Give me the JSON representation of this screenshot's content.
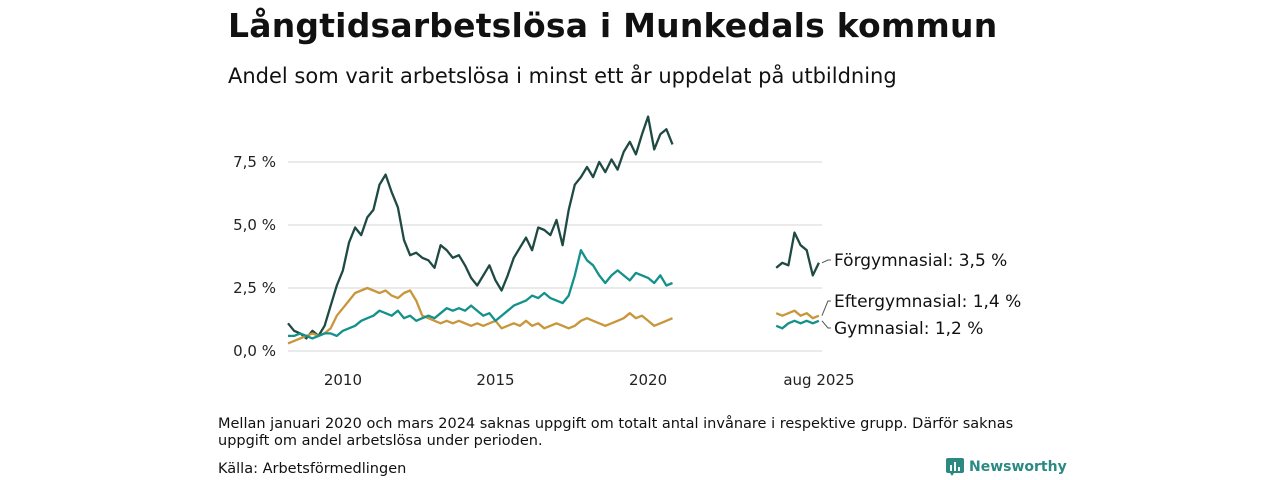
{
  "header": {
    "title": "Långtidsarbetslösa i Munkedals kommun",
    "subtitle": "Andel som varit arbetslösa i minst ett år uppdelat på utbildning"
  },
  "footer": {
    "note": "Mellan januari 2020 och mars 2024 saknas uppgift om totalt antal invånare i respektive grupp. Därför saknas uppgift om andel arbetslösa under perioden.",
    "source": "Källa: Arbetsförmedlingen",
    "logo_text": "Newsworthy"
  },
  "chart_data": {
    "type": "line",
    "x_axis": {
      "range": [
        2008.2,
        2025.7
      ],
      "ticks": [
        2010,
        2015,
        2020
      ],
      "extra_tick": {
        "x": 2025.6,
        "label": "aug 2025"
      }
    },
    "y_axis": {
      "range": [
        0,
        9.6
      ],
      "ticks": [
        {
          "value": 0,
          "label": "0,0 %"
        },
        {
          "value": 2.5,
          "label": "2,5 %"
        },
        {
          "value": 5,
          "label": "5,0 %"
        },
        {
          "value": 7.5,
          "label": "7,5 %"
        }
      ]
    },
    "grid": true,
    "gap": [
      2020.9,
      2024.2
    ],
    "series": [
      {
        "name": "Förgymnasial",
        "color": "#1f4a43",
        "end_label": "Förgymnasial: 3,5 %",
        "points": [
          [
            2008.2,
            1.1
          ],
          [
            2008.4,
            0.8
          ],
          [
            2008.6,
            0.7
          ],
          [
            2008.8,
            0.5
          ],
          [
            2009.0,
            0.8
          ],
          [
            2009.2,
            0.6
          ],
          [
            2009.4,
            1.0
          ],
          [
            2009.6,
            1.8
          ],
          [
            2009.8,
            2.6
          ],
          [
            2010.0,
            3.2
          ],
          [
            2010.2,
            4.3
          ],
          [
            2010.4,
            4.9
          ],
          [
            2010.6,
            4.6
          ],
          [
            2010.8,
            5.3
          ],
          [
            2011.0,
            5.6
          ],
          [
            2011.2,
            6.6
          ],
          [
            2011.4,
            7.0
          ],
          [
            2011.6,
            6.3
          ],
          [
            2011.8,
            5.7
          ],
          [
            2012.0,
            4.4
          ],
          [
            2012.2,
            3.8
          ],
          [
            2012.4,
            3.9
          ],
          [
            2012.6,
            3.7
          ],
          [
            2012.8,
            3.6
          ],
          [
            2013.0,
            3.3
          ],
          [
            2013.2,
            4.2
          ],
          [
            2013.4,
            4.0
          ],
          [
            2013.6,
            3.7
          ],
          [
            2013.8,
            3.8
          ],
          [
            2014.0,
            3.4
          ],
          [
            2014.2,
            2.9
          ],
          [
            2014.4,
            2.6
          ],
          [
            2014.6,
            3.0
          ],
          [
            2014.8,
            3.4
          ],
          [
            2015.0,
            2.8
          ],
          [
            2015.2,
            2.4
          ],
          [
            2015.4,
            3.0
          ],
          [
            2015.6,
            3.7
          ],
          [
            2015.8,
            4.1
          ],
          [
            2016.0,
            4.5
          ],
          [
            2016.2,
            4.0
          ],
          [
            2016.4,
            4.9
          ],
          [
            2016.6,
            4.8
          ],
          [
            2016.8,
            4.6
          ],
          [
            2017.0,
            5.2
          ],
          [
            2017.2,
            4.2
          ],
          [
            2017.4,
            5.6
          ],
          [
            2017.6,
            6.6
          ],
          [
            2017.8,
            6.9
          ],
          [
            2018.0,
            7.3
          ],
          [
            2018.2,
            6.9
          ],
          [
            2018.4,
            7.5
          ],
          [
            2018.6,
            7.1
          ],
          [
            2018.8,
            7.6
          ],
          [
            2019.0,
            7.2
          ],
          [
            2019.2,
            7.9
          ],
          [
            2019.4,
            8.3
          ],
          [
            2019.6,
            7.8
          ],
          [
            2019.8,
            8.6
          ],
          [
            2020.0,
            9.3
          ],
          [
            2020.2,
            8.0
          ],
          [
            2020.4,
            8.6
          ],
          [
            2020.6,
            8.8
          ],
          [
            2020.8,
            8.2
          ]
        ],
        "points2": [
          [
            2024.2,
            3.3
          ],
          [
            2024.4,
            3.5
          ],
          [
            2024.6,
            3.4
          ],
          [
            2024.8,
            4.7
          ],
          [
            2025.0,
            4.2
          ],
          [
            2025.2,
            4.0
          ],
          [
            2025.4,
            3.0
          ],
          [
            2025.6,
            3.5
          ]
        ]
      },
      {
        "name": "Eftergymnasial",
        "color": "#c9963b",
        "end_label": "Eftergymnasial: 1,4 %",
        "points": [
          [
            2008.2,
            0.3
          ],
          [
            2008.4,
            0.4
          ],
          [
            2008.6,
            0.5
          ],
          [
            2008.8,
            0.6
          ],
          [
            2009.0,
            0.7
          ],
          [
            2009.2,
            0.6
          ],
          [
            2009.4,
            0.7
          ],
          [
            2009.6,
            0.9
          ],
          [
            2009.8,
            1.4
          ],
          [
            2010.0,
            1.7
          ],
          [
            2010.2,
            2.0
          ],
          [
            2010.4,
            2.3
          ],
          [
            2010.6,
            2.4
          ],
          [
            2010.8,
            2.5
          ],
          [
            2011.0,
            2.4
          ],
          [
            2011.2,
            2.3
          ],
          [
            2011.4,
            2.4
          ],
          [
            2011.6,
            2.2
          ],
          [
            2011.8,
            2.1
          ],
          [
            2012.0,
            2.3
          ],
          [
            2012.2,
            2.4
          ],
          [
            2012.4,
            2.0
          ],
          [
            2012.6,
            1.4
          ],
          [
            2012.8,
            1.3
          ],
          [
            2013.0,
            1.2
          ],
          [
            2013.2,
            1.1
          ],
          [
            2013.4,
            1.2
          ],
          [
            2013.6,
            1.1
          ],
          [
            2013.8,
            1.2
          ],
          [
            2014.0,
            1.1
          ],
          [
            2014.2,
            1.0
          ],
          [
            2014.4,
            1.1
          ],
          [
            2014.6,
            1.0
          ],
          [
            2014.8,
            1.1
          ],
          [
            2015.0,
            1.2
          ],
          [
            2015.2,
            0.9
          ],
          [
            2015.4,
            1.0
          ],
          [
            2015.6,
            1.1
          ],
          [
            2015.8,
            1.0
          ],
          [
            2016.0,
            1.2
          ],
          [
            2016.2,
            1.0
          ],
          [
            2016.4,
            1.1
          ],
          [
            2016.6,
            0.9
          ],
          [
            2016.8,
            1.0
          ],
          [
            2017.0,
            1.1
          ],
          [
            2017.2,
            1.0
          ],
          [
            2017.4,
            0.9
          ],
          [
            2017.6,
            1.0
          ],
          [
            2017.8,
            1.2
          ],
          [
            2018.0,
            1.3
          ],
          [
            2018.2,
            1.2
          ],
          [
            2018.4,
            1.1
          ],
          [
            2018.6,
            1.0
          ],
          [
            2018.8,
            1.1
          ],
          [
            2019.0,
            1.2
          ],
          [
            2019.2,
            1.3
          ],
          [
            2019.4,
            1.5
          ],
          [
            2019.6,
            1.3
          ],
          [
            2019.8,
            1.4
          ],
          [
            2020.0,
            1.2
          ],
          [
            2020.2,
            1.0
          ],
          [
            2020.4,
            1.1
          ],
          [
            2020.6,
            1.2
          ],
          [
            2020.8,
            1.3
          ]
        ],
        "points2": [
          [
            2024.2,
            1.5
          ],
          [
            2024.4,
            1.4
          ],
          [
            2024.6,
            1.5
          ],
          [
            2024.8,
            1.6
          ],
          [
            2025.0,
            1.4
          ],
          [
            2025.2,
            1.5
          ],
          [
            2025.4,
            1.3
          ],
          [
            2025.6,
            1.4
          ]
        ]
      },
      {
        "name": "Gymnasial",
        "color": "#13918a",
        "end_label": "Gymnasial: 1,2 %",
        "points": [
          [
            2008.2,
            0.6
          ],
          [
            2008.4,
            0.6
          ],
          [
            2008.6,
            0.7
          ],
          [
            2008.8,
            0.6
          ],
          [
            2009.0,
            0.5
          ],
          [
            2009.2,
            0.6
          ],
          [
            2009.4,
            0.7
          ],
          [
            2009.6,
            0.7
          ],
          [
            2009.8,
            0.6
          ],
          [
            2010.0,
            0.8
          ],
          [
            2010.2,
            0.9
          ],
          [
            2010.4,
            1.0
          ],
          [
            2010.6,
            1.2
          ],
          [
            2010.8,
            1.3
          ],
          [
            2011.0,
            1.4
          ],
          [
            2011.2,
            1.6
          ],
          [
            2011.4,
            1.5
          ],
          [
            2011.6,
            1.4
          ],
          [
            2011.8,
            1.6
          ],
          [
            2012.0,
            1.3
          ],
          [
            2012.2,
            1.4
          ],
          [
            2012.4,
            1.2
          ],
          [
            2012.6,
            1.3
          ],
          [
            2012.8,
            1.4
          ],
          [
            2013.0,
            1.3
          ],
          [
            2013.2,
            1.5
          ],
          [
            2013.4,
            1.7
          ],
          [
            2013.6,
            1.6
          ],
          [
            2013.8,
            1.7
          ],
          [
            2014.0,
            1.6
          ],
          [
            2014.2,
            1.8
          ],
          [
            2014.4,
            1.6
          ],
          [
            2014.6,
            1.4
          ],
          [
            2014.8,
            1.5
          ],
          [
            2015.0,
            1.2
          ],
          [
            2015.2,
            1.4
          ],
          [
            2015.4,
            1.6
          ],
          [
            2015.6,
            1.8
          ],
          [
            2015.8,
            1.9
          ],
          [
            2016.0,
            2.0
          ],
          [
            2016.2,
            2.2
          ],
          [
            2016.4,
            2.1
          ],
          [
            2016.6,
            2.3
          ],
          [
            2016.8,
            2.1
          ],
          [
            2017.0,
            2.0
          ],
          [
            2017.2,
            1.9
          ],
          [
            2017.4,
            2.2
          ],
          [
            2017.6,
            3.0
          ],
          [
            2017.8,
            4.0
          ],
          [
            2018.0,
            3.6
          ],
          [
            2018.2,
            3.4
          ],
          [
            2018.4,
            3.0
          ],
          [
            2018.6,
            2.7
          ],
          [
            2018.8,
            3.0
          ],
          [
            2019.0,
            3.2
          ],
          [
            2019.2,
            3.0
          ],
          [
            2019.4,
            2.8
          ],
          [
            2019.6,
            3.1
          ],
          [
            2019.8,
            3.0
          ],
          [
            2020.0,
            2.9
          ],
          [
            2020.2,
            2.7
          ],
          [
            2020.4,
            3.0
          ],
          [
            2020.6,
            2.6
          ],
          [
            2020.8,
            2.7
          ]
        ],
        "points2": [
          [
            2024.2,
            1.0
          ],
          [
            2024.4,
            0.9
          ],
          [
            2024.6,
            1.1
          ],
          [
            2024.8,
            1.2
          ],
          [
            2025.0,
            1.1
          ],
          [
            2025.2,
            1.2
          ],
          [
            2025.4,
            1.1
          ],
          [
            2025.6,
            1.2
          ]
        ]
      }
    ]
  }
}
